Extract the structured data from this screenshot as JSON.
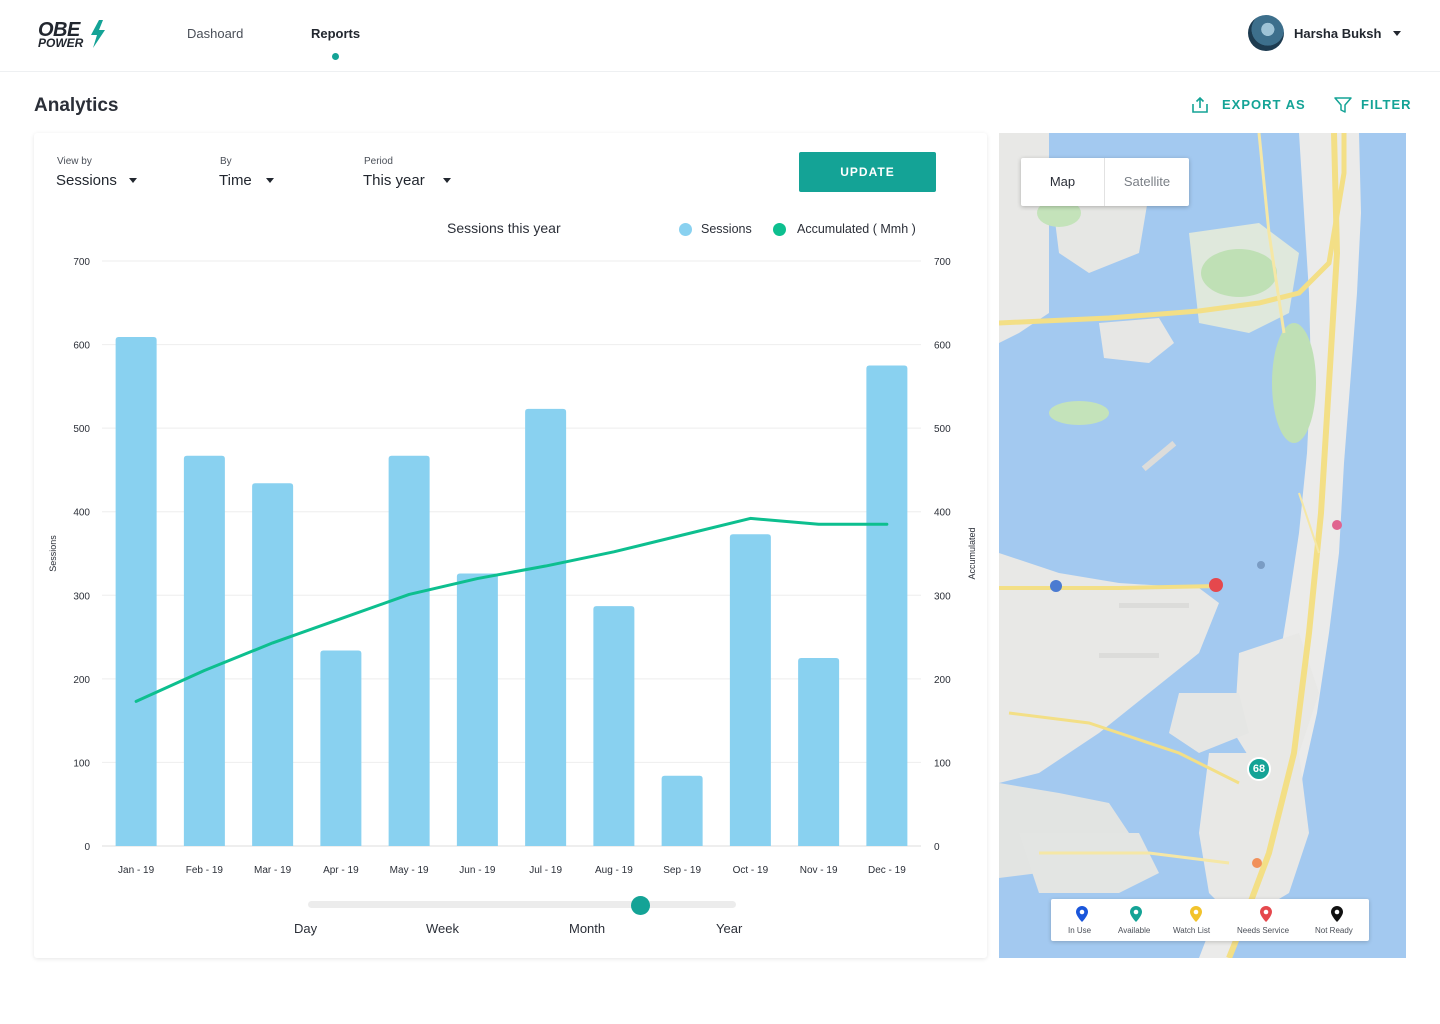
{
  "app": {
    "logo_line1": "OBE",
    "logo_line2": "POWER",
    "brand_color": "#14a396"
  },
  "nav": {
    "dashboard": "Dashoard",
    "reports": "Reports",
    "active": "Reports"
  },
  "user": {
    "name": "Harsha Buksh"
  },
  "page": {
    "title": "Analytics",
    "export_label": "EXPORT AS",
    "filter_label": "FILTER"
  },
  "controls": {
    "view_by": {
      "label": "View by",
      "value": "Sessions"
    },
    "by": {
      "label": "By",
      "value": "Time"
    },
    "period": {
      "label": "Period",
      "value": "This year"
    },
    "update_label": "UPDATE"
  },
  "chart_data": {
    "type": "bar",
    "title": "Sessions this year",
    "categories": [
      "Jan - 19",
      "Feb - 19",
      "Mar - 19",
      "Apr - 19",
      "May - 19",
      "Jun - 19",
      "Jul - 19",
      "Aug - 19",
      "Sep - 19",
      "Oct - 19",
      "Nov - 19",
      "Dec - 19"
    ],
    "series": [
      {
        "name": "Sessions",
        "type": "bar",
        "color": "#89d1f0",
        "values": [
          609,
          467,
          434,
          234,
          467,
          326,
          523,
          287,
          84,
          373,
          225,
          575
        ]
      },
      {
        "name": "Accumulated ( Mmh )",
        "type": "line",
        "color": "#0dbf8f",
        "values": [
          173,
          210,
          243,
          272,
          301,
          320,
          335,
          352,
          372,
          392,
          385,
          385
        ]
      }
    ],
    "ylabel": "Sessions",
    "y2label": "Accumulated",
    "ylim": [
      0,
      700
    ],
    "y2lim": [
      0,
      700
    ],
    "yticks": [
      0,
      100,
      200,
      300,
      400,
      500,
      600,
      700
    ],
    "grid": true,
    "legend_position": "top-right"
  },
  "granularity": {
    "options": [
      "Day",
      "Week",
      "Month",
      "Year"
    ],
    "selected": "Month"
  },
  "map": {
    "toggle": [
      "Map",
      "Satellite"
    ],
    "selected": "Map",
    "cluster_count": "68",
    "legend": [
      {
        "label": "In Use",
        "color": "#1a56db"
      },
      {
        "label": "Available",
        "color": "#14a396"
      },
      {
        "label": "Watch List",
        "color": "#f2c32c"
      },
      {
        "label": "Needs Service",
        "color": "#e5484d"
      },
      {
        "label": "Not Ready",
        "color": "#111111"
      }
    ]
  }
}
